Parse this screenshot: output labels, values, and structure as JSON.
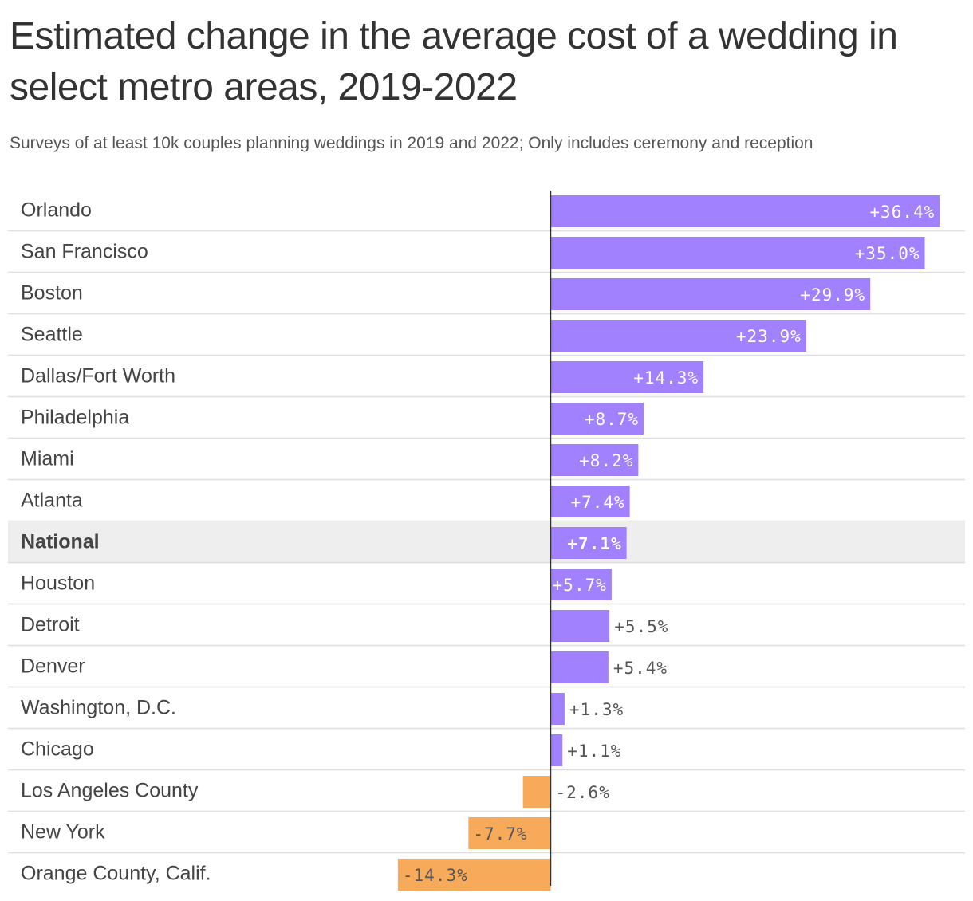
{
  "chart_data": {
    "type": "bar",
    "orientation": "horizontal",
    "title": "Estimated change in the average cost of a wedding in select metro areas, 2019-2022",
    "subtitle": "Surveys of at least 10k couples planning weddings in 2019 and 2022; Only includes ceremony and reception",
    "categories": [
      "Orlando",
      "San Francisco",
      "Boston",
      "Seattle",
      "Dallas/Fort Worth",
      "Philadelphia",
      "Miami",
      "Atlanta",
      "National",
      "Houston",
      "Detroit",
      "Denver",
      "Washington, D.C.",
      "Chicago",
      "Los Angeles County",
      "New York",
      "Orange County, Calif."
    ],
    "values": [
      36.4,
      35.0,
      29.9,
      23.9,
      14.3,
      8.7,
      8.2,
      7.4,
      7.1,
      5.7,
      5.5,
      5.4,
      1.3,
      1.1,
      -2.6,
      -7.7,
      -14.3
    ],
    "value_labels": [
      "+36.4%",
      "+35.0%",
      "+29.9%",
      "+23.9%",
      "+14.3%",
      "+8.7%",
      "+8.2%",
      "+7.4%",
      "+7.1%",
      "+5.7%",
      "+5.5%",
      "+5.4%",
      "+1.3%",
      "+1.1%",
      "-2.6%",
      "-7.7%",
      "-14.3%"
    ],
    "highlight_category": "National",
    "xlim": [
      -14.3,
      36.4
    ],
    "grid": false,
    "legend": "none",
    "colors": {
      "positive": "#a181fe",
      "negative": "#f7aa5a",
      "highlight_row": "#eeeeee",
      "row_divider": "#dddddd",
      "axis": "#333333",
      "label_inside": "#ffffff",
      "label_outside": "#555555"
    }
  }
}
